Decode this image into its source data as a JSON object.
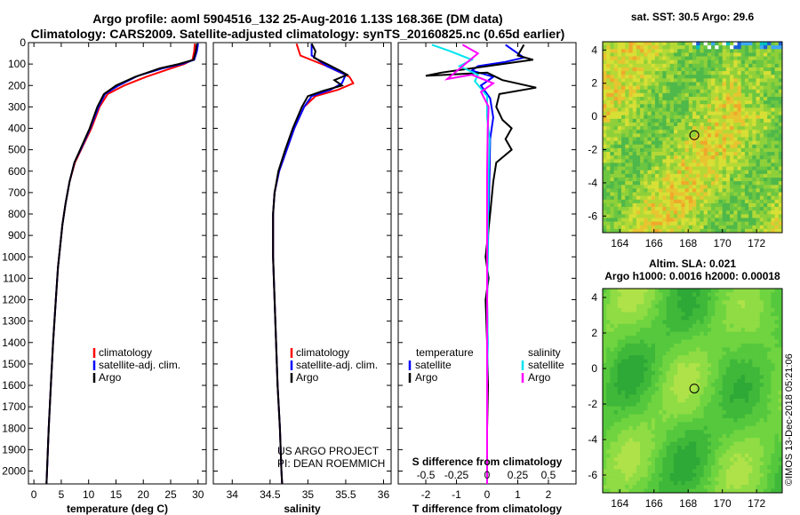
{
  "title": {
    "line1": "Argo profile: aoml 5904516_132 25-Aug-2016 1.13S 168.36E (DM data)",
    "line2": "Climatology: CARS2009. Satellite-adjusted climatology: synTS_20160825.nc (0.65d earlier)"
  },
  "watermark": "©IMOS 13-Dec-2018 05:21:06",
  "colors": {
    "red": "#ff0000",
    "blue": "#0000ff",
    "black": "#000000",
    "cyan": "#00e5ee",
    "magenta": "#ff00ff"
  },
  "chart_data": [
    {
      "type": "line",
      "id": "temperature",
      "xlabel": "temperature (deg C)",
      "ylabel": "",
      "xlim": [
        -1,
        31.5
      ],
      "ylim": [
        2060,
        0
      ],
      "xticks": [
        0,
        5,
        10,
        15,
        20,
        25,
        30
      ],
      "yticks": [
        0,
        100,
        200,
        300,
        400,
        500,
        600,
        700,
        800,
        900,
        1000,
        1100,
        1200,
        1300,
        1400,
        1500,
        1600,
        1700,
        1800,
        1900,
        2000
      ],
      "legend": [
        "climatology",
        "satellite-adj. clim.",
        "Argo"
      ],
      "series": [
        {
          "name": "climatology",
          "color": "#ff0000",
          "points": [
            [
              29.4,
              5
            ],
            [
              29.3,
              40
            ],
            [
              29.0,
              80
            ],
            [
              27.5,
              100
            ],
            [
              24.5,
              125
            ],
            [
              20.5,
              160
            ],
            [
              16.5,
              200
            ],
            [
              13.5,
              240
            ],
            [
              12.0,
              300
            ],
            [
              10.5,
              400
            ],
            [
              9.0,
              480
            ],
            [
              7.5,
              560
            ],
            [
              6.5,
              650
            ],
            [
              5.8,
              750
            ],
            [
              5.2,
              850
            ],
            [
              4.8,
              950
            ],
            [
              4.4,
              1050
            ],
            [
              4.0,
              1200
            ],
            [
              3.5,
              1400
            ],
            [
              3.1,
              1600
            ],
            [
              2.7,
              1800
            ],
            [
              2.4,
              2000
            ],
            [
              2.3,
              2060
            ]
          ]
        },
        {
          "name": "satellite-adj. clim.",
          "color": "#0000ff",
          "points": [
            [
              30.0,
              5
            ],
            [
              29.8,
              40
            ],
            [
              29.3,
              80
            ],
            [
              27.0,
              100
            ],
            [
              23.5,
              120
            ],
            [
              19.0,
              155
            ],
            [
              15.5,
              200
            ],
            [
              13.0,
              240
            ],
            [
              11.8,
              300
            ],
            [
              10.3,
              400
            ],
            [
              8.9,
              480
            ],
            [
              7.4,
              560
            ],
            [
              6.5,
              650
            ],
            [
              5.8,
              750
            ],
            [
              5.2,
              850
            ],
            [
              4.8,
              950
            ],
            [
              4.4,
              1050
            ],
            [
              4.0,
              1200
            ],
            [
              3.5,
              1400
            ],
            [
              3.1,
              1600
            ],
            [
              2.7,
              1800
            ],
            [
              2.4,
              2000
            ],
            [
              2.3,
              2060
            ]
          ]
        },
        {
          "name": "Argo",
          "color": "#000000",
          "points": [
            [
              29.8,
              5
            ],
            [
              29.6,
              40
            ],
            [
              29.2,
              80
            ],
            [
              26.5,
              100
            ],
            [
              23.0,
              120
            ],
            [
              18.5,
              160
            ],
            [
              15.0,
              200
            ],
            [
              12.8,
              240
            ],
            [
              11.6,
              300
            ],
            [
              10.2,
              400
            ],
            [
              8.8,
              480
            ],
            [
              7.4,
              560
            ],
            [
              6.5,
              650
            ],
            [
              5.8,
              750
            ],
            [
              5.2,
              850
            ],
            [
              4.8,
              950
            ],
            [
              4.4,
              1050
            ],
            [
              4.0,
              1200
            ],
            [
              3.5,
              1400
            ],
            [
              3.1,
              1600
            ],
            [
              2.7,
              1800
            ],
            [
              2.4,
              2000
            ],
            [
              2.3,
              2060
            ]
          ]
        }
      ]
    },
    {
      "type": "line",
      "id": "salinity",
      "xlabel": "salinity",
      "xlim": [
        33.75,
        36.1
      ],
      "ylim": [
        2060,
        0
      ],
      "xticks": [
        34,
        34.5,
        35,
        35.5,
        36
      ],
      "legend": [
        "climatology",
        "satellite-adj. clim.",
        "Argo"
      ],
      "annotation": [
        "US ARGO PROJECT",
        "PI: DEAN ROEMMICH"
      ],
      "series": [
        {
          "name": "climatology",
          "color": "#ff0000",
          "points": [
            [
              34.85,
              5
            ],
            [
              34.9,
              60
            ],
            [
              35.25,
              110
            ],
            [
              35.55,
              160
            ],
            [
              35.6,
              190
            ],
            [
              35.4,
              220
            ],
            [
              35.1,
              250
            ],
            [
              34.95,
              300
            ],
            [
              34.82,
              400
            ],
            [
              34.72,
              500
            ],
            [
              34.62,
              600
            ],
            [
              34.56,
              700
            ],
            [
              34.54,
              800
            ],
            [
              34.54,
              1000
            ],
            [
              34.56,
              1200
            ],
            [
              34.58,
              1400
            ],
            [
              34.6,
              1600
            ],
            [
              34.63,
              1800
            ],
            [
              34.65,
              2000
            ],
            [
              34.66,
              2060
            ]
          ]
        },
        {
          "name": "satellite-adj. clim.",
          "color": "#0000ff",
          "points": [
            [
              35.05,
              5
            ],
            [
              35.05,
              60
            ],
            [
              35.25,
              110
            ],
            [
              35.5,
              150
            ],
            [
              35.45,
              190
            ],
            [
              35.3,
              220
            ],
            [
              35.05,
              250
            ],
            [
              34.95,
              300
            ],
            [
              34.82,
              400
            ],
            [
              34.72,
              500
            ],
            [
              34.62,
              600
            ],
            [
              34.56,
              700
            ],
            [
              34.54,
              800
            ],
            [
              34.54,
              1000
            ],
            [
              34.56,
              1200
            ],
            [
              34.58,
              1400
            ],
            [
              34.6,
              1600
            ],
            [
              34.63,
              1800
            ],
            [
              34.65,
              2000
            ],
            [
              34.66,
              2060
            ]
          ]
        },
        {
          "name": "Argo",
          "color": "#000000",
          "points": [
            [
              35.05,
              5
            ],
            [
              35.1,
              40
            ],
            [
              35.08,
              70
            ],
            [
              35.28,
              105
            ],
            [
              35.42,
              130
            ],
            [
              35.52,
              150
            ],
            [
              35.35,
              175
            ],
            [
              35.45,
              200
            ],
            [
              35.2,
              225
            ],
            [
              35.0,
              250
            ],
            [
              34.92,
              300
            ],
            [
              34.8,
              400
            ],
            [
              34.7,
              500
            ],
            [
              34.61,
              600
            ],
            [
              34.56,
              700
            ],
            [
              34.54,
              800
            ],
            [
              34.54,
              1000
            ],
            [
              34.56,
              1200
            ],
            [
              34.58,
              1400
            ],
            [
              34.6,
              1600
            ],
            [
              34.63,
              1800
            ],
            [
              34.65,
              2000
            ],
            [
              34.66,
              2060
            ]
          ]
        }
      ]
    },
    {
      "type": "line",
      "id": "difference",
      "xlabel": "T difference from climatology",
      "top_axis_label": "S difference from climatology",
      "xlim": [
        -2.9,
        2.9
      ],
      "ylim": [
        2060,
        0
      ],
      "xticks": [
        -2,
        -1,
        0,
        1,
        2
      ],
      "top_xticks": [
        "-0.5",
        "-0.25",
        "0",
        "0.25",
        "0.5"
      ],
      "legend_temperature": {
        "title": "temperature",
        "items": [
          "satellite",
          "Argo"
        ]
      },
      "legend_salinity": {
        "title": "salinity",
        "items": [
          "satellite",
          "Argo"
        ]
      },
      "series": [
        {
          "name": "temperature satellite",
          "color": "#0000ff",
          "points": [
            [
              0.6,
              10
            ],
            [
              0.9,
              40
            ],
            [
              1.2,
              70
            ],
            [
              0.6,
              90
            ],
            [
              -0.3,
              110
            ],
            [
              -0.5,
              130
            ],
            [
              0.2,
              160
            ],
            [
              -0.2,
              200
            ],
            [
              0.1,
              260
            ],
            [
              0.2,
              350
            ],
            [
              0.1,
              450
            ],
            [
              0.08,
              600
            ],
            [
              0.05,
              800
            ],
            [
              0.02,
              1000
            ],
            [
              0,
              1200
            ],
            [
              0.02,
              1400
            ],
            [
              0,
              1600
            ],
            [
              0,
              1800
            ],
            [
              0,
              2000
            ],
            [
              0,
              2060
            ]
          ]
        },
        {
          "name": "temperature Argo",
          "color": "#000000",
          "points": [
            [
              1.2,
              10
            ],
            [
              1.0,
              60
            ],
            [
              1.5,
              80
            ],
            [
              0.5,
              100
            ],
            [
              -1.5,
              140
            ],
            [
              -2.0,
              155
            ],
            [
              0,
              140
            ],
            [
              0.5,
              175
            ],
            [
              1.6,
              210
            ],
            [
              0.4,
              240
            ],
            [
              0.3,
              300
            ],
            [
              0.5,
              360
            ],
            [
              0.8,
              400
            ],
            [
              0.6,
              450
            ],
            [
              0.8,
              500
            ],
            [
              0.3,
              560
            ],
            [
              0.2,
              650
            ],
            [
              0.1,
              800
            ],
            [
              -0.05,
              1000
            ],
            [
              0.05,
              1100
            ],
            [
              -0.05,
              1200
            ],
            [
              0,
              1400
            ],
            [
              0.03,
              1600
            ],
            [
              0,
              1800
            ],
            [
              0,
              2000
            ],
            [
              0,
              2060
            ]
          ]
        },
        {
          "name": "salinity satellite",
          "color": "#00e5ee",
          "points": [
            [
              -1.8,
              10
            ],
            [
              -1.2,
              40
            ],
            [
              -0.5,
              80
            ],
            [
              -0.9,
              110
            ],
            [
              -0.3,
              150
            ],
            [
              -0.4,
              180
            ],
            [
              0,
              250
            ],
            [
              0,
              350
            ],
            [
              0.08,
              450
            ],
            [
              0.05,
              600
            ],
            [
              0.03,
              800
            ],
            [
              0.02,
              1000
            ],
            [
              0,
              1200
            ],
            [
              0.02,
              1400
            ],
            [
              0,
              1600
            ],
            [
              0,
              1800
            ],
            [
              0,
              2000
            ],
            [
              0,
              2060
            ]
          ]
        },
        {
          "name": "salinity Argo",
          "color": "#ff00ff",
          "points": [
            [
              -0.8,
              10
            ],
            [
              -0.3,
              50
            ],
            [
              -0.8,
              110
            ],
            [
              -1.3,
              170
            ],
            [
              -0.5,
              150
            ],
            [
              0.2,
              190
            ],
            [
              -0.2,
              230
            ],
            [
              0.05,
              300
            ],
            [
              0.02,
              400
            ],
            [
              0,
              600
            ],
            [
              0,
              800
            ],
            [
              0,
              1000
            ],
            [
              0,
              1200
            ],
            [
              0,
              1400
            ],
            [
              0,
              1600
            ],
            [
              0,
              1800
            ],
            [
              0,
              2000
            ],
            [
              0,
              2060
            ]
          ]
        }
      ]
    },
    {
      "type": "heatmap",
      "id": "sst",
      "title": "sat. SST: 30.5 Argo: 29.6",
      "xlim": [
        163,
        173.5
      ],
      "ylim": [
        -7,
        4.5
      ],
      "xticks": [
        164,
        166,
        168,
        170,
        172
      ],
      "yticks": [
        4,
        2,
        0,
        -2,
        -4,
        -6
      ],
      "marker": {
        "lon": 168.36,
        "lat": -1.13
      }
    },
    {
      "type": "heatmap",
      "id": "sla",
      "title": "Altim. SLA: 0.021",
      "subtitle": "Argo h1000: 0.0016 h2000: 0.00018",
      "xlim": [
        163,
        173.5
      ],
      "ylim": [
        -7,
        4.5
      ],
      "xticks": [
        164,
        166,
        168,
        170,
        172
      ],
      "yticks": [
        4,
        2,
        0,
        -2,
        -4,
        -6
      ],
      "marker": {
        "lon": 168.36,
        "lat": -1.13
      }
    }
  ]
}
